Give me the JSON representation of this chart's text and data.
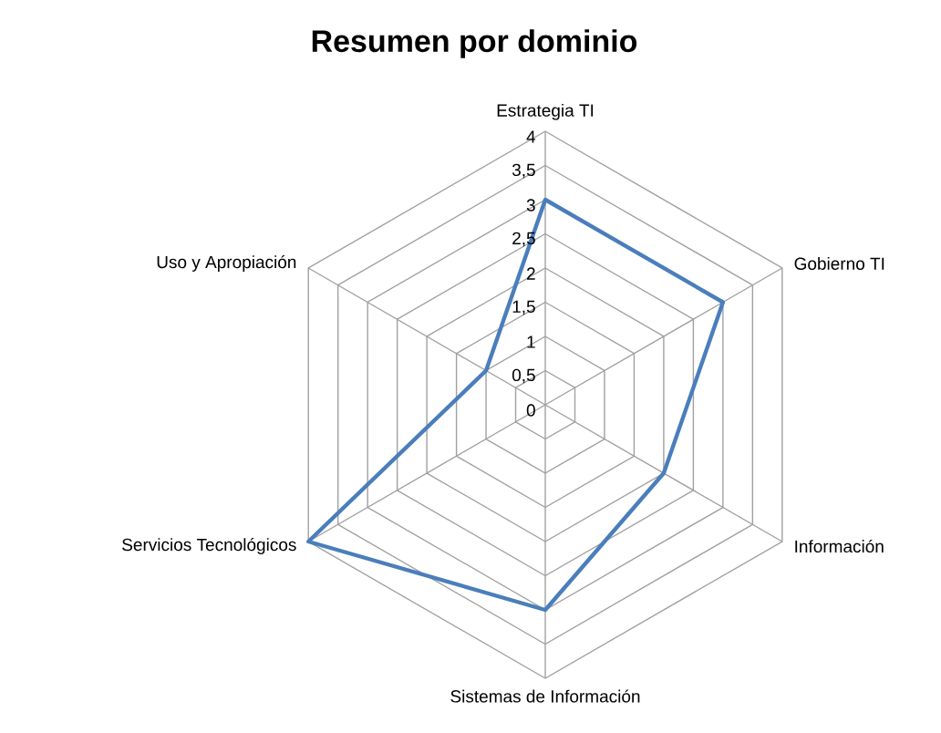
{
  "chart_data": {
    "type": "radar",
    "title": "Resumen por dominio",
    "categories": [
      "Estrategia TI",
      "Gobierno TI",
      "Información",
      "Sistemas de Información",
      "Servicios Tecnológicos",
      "Uso y Apropiación"
    ],
    "series": [
      {
        "color": "#4a7ebb",
        "values": [
          3,
          3,
          2,
          3,
          4,
          1
        ]
      }
    ],
    "ylim": [
      0,
      4
    ],
    "yticks": [
      0,
      {
        "value": 0.5,
        "label": "0,5"
      },
      1,
      {
        "value": 1.5,
        "label": "1,5"
      },
      2,
      {
        "value": 2.5,
        "label": "2,5"
      },
      3,
      {
        "value": 3.5,
        "label": "3,5"
      },
      4
    ],
    "grid": true
  }
}
